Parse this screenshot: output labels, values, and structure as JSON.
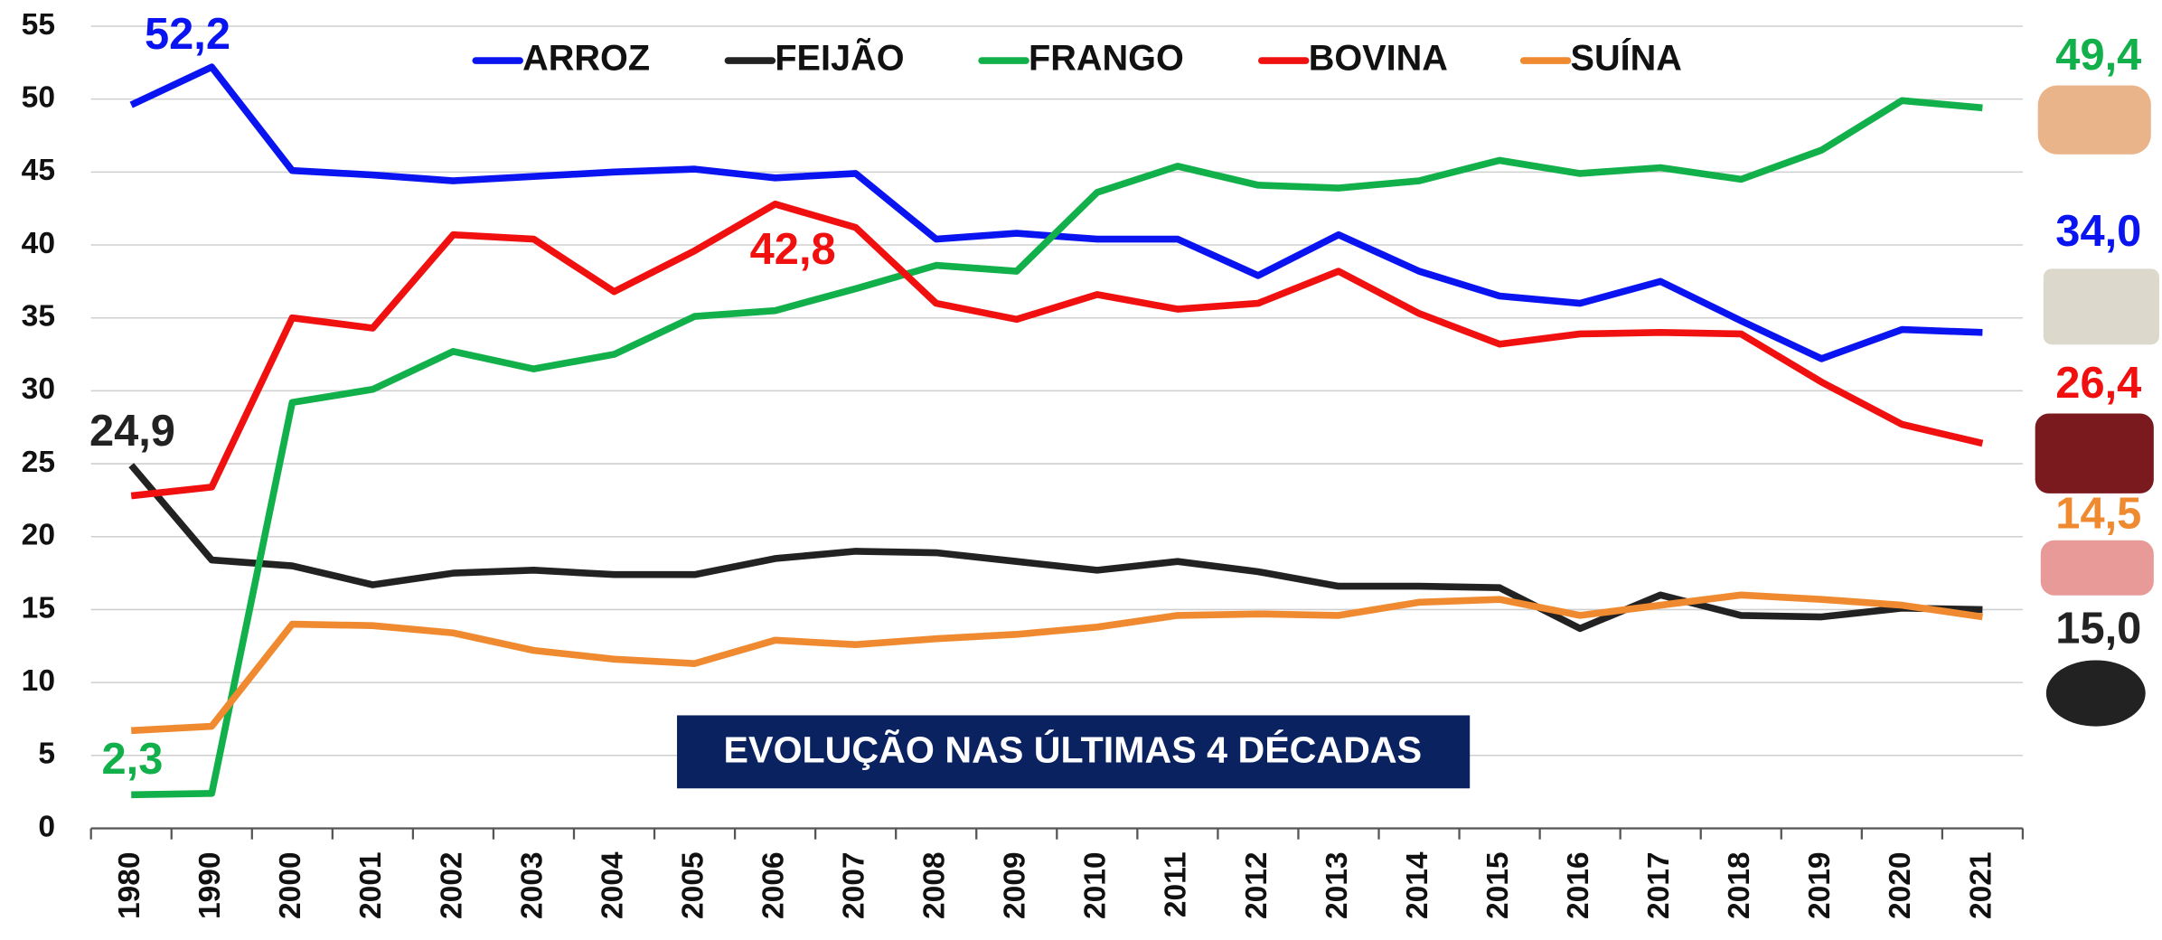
{
  "chart_data": {
    "type": "line",
    "categories": [
      "1980",
      "1990",
      "2000",
      "2001",
      "2002",
      "2003",
      "2004",
      "2005",
      "2006",
      "2007",
      "2008",
      "2009",
      "2010",
      "2011",
      "2012",
      "2013",
      "2014",
      "2015",
      "2016",
      "2017",
      "2018",
      "2019",
      "2020",
      "2021"
    ],
    "ylim": [
      0,
      55
    ],
    "yticks": [
      0,
      5,
      10,
      15,
      20,
      25,
      30,
      35,
      40,
      45,
      50,
      55
    ],
    "grid": true,
    "banner": "EVOLUÇÃO NAS ÚLTIMAS 4 DÉCADAS",
    "series": [
      {
        "name": "ARROZ",
        "color": "#0a14f0",
        "values": [
          49.6,
          52.2,
          45.1,
          44.8,
          44.4,
          44.7,
          45.0,
          45.2,
          44.6,
          44.9,
          40.4,
          40.8,
          40.4,
          40.4,
          37.9,
          40.7,
          38.2,
          36.5,
          36.0,
          37.5,
          34.8,
          32.2,
          34.2,
          34.0
        ],
        "value_labels": [
          null,
          "52,2",
          null,
          null,
          null,
          null,
          null,
          null,
          null,
          null,
          null,
          null,
          null,
          null,
          null,
          null,
          null,
          null,
          null,
          null,
          null,
          null,
          null,
          "34,0"
        ]
      },
      {
        "name": "FEIJÃO",
        "color": "#222222",
        "values": [
          24.9,
          18.4,
          18.0,
          16.7,
          17.5,
          17.7,
          17.4,
          17.4,
          18.5,
          19.0,
          18.9,
          18.3,
          17.7,
          18.3,
          17.6,
          16.6,
          16.6,
          16.5,
          13.7,
          16.0,
          14.6,
          14.5,
          15.1,
          15.0
        ],
        "value_labels": [
          "24,9",
          null,
          null,
          null,
          null,
          null,
          null,
          null,
          null,
          null,
          null,
          null,
          null,
          null,
          null,
          null,
          null,
          null,
          null,
          null,
          null,
          null,
          null,
          "15,0"
        ]
      },
      {
        "name": "FRANGO",
        "color": "#12b04a",
        "values": [
          2.3,
          2.4,
          29.2,
          30.1,
          32.7,
          31.5,
          32.5,
          35.1,
          35.5,
          37.0,
          38.6,
          38.2,
          43.6,
          45.4,
          44.1,
          43.9,
          44.4,
          45.8,
          44.9,
          45.3,
          44.5,
          46.5,
          49.9,
          49.4
        ],
        "value_labels": [
          "2,3",
          null,
          null,
          null,
          null,
          null,
          null,
          null,
          null,
          null,
          null,
          null,
          null,
          null,
          null,
          null,
          null,
          null,
          null,
          null,
          null,
          null,
          null,
          "49,4"
        ]
      },
      {
        "name": "BOVINA",
        "color": "#f01010",
        "values": [
          22.8,
          23.4,
          35.0,
          34.3,
          40.7,
          40.4,
          36.8,
          39.6,
          42.8,
          41.2,
          36.0,
          34.9,
          36.6,
          35.6,
          36.0,
          38.2,
          35.3,
          33.2,
          33.9,
          34.0,
          33.9,
          30.6,
          27.7,
          26.4
        ],
        "value_labels": [
          null,
          null,
          null,
          null,
          null,
          null,
          null,
          null,
          "42,8",
          null,
          null,
          null,
          null,
          null,
          null,
          null,
          null,
          null,
          null,
          null,
          null,
          null,
          null,
          "26,4"
        ]
      },
      {
        "name": "SUÍNA",
        "color": "#f08a30",
        "values": [
          6.7,
          7.0,
          14.0,
          13.9,
          13.4,
          12.2,
          11.6,
          11.3,
          12.9,
          12.6,
          13.0,
          13.3,
          13.8,
          14.6,
          14.7,
          14.6,
          15.5,
          15.7,
          14.6,
          15.3,
          16.0,
          15.7,
          15.3,
          14.5
        ],
        "value_labels": [
          null,
          null,
          null,
          null,
          null,
          null,
          null,
          null,
          null,
          null,
          null,
          null,
          null,
          null,
          null,
          null,
          null,
          null,
          null,
          null,
          null,
          null,
          null,
          "14,5"
        ]
      }
    ]
  }
}
